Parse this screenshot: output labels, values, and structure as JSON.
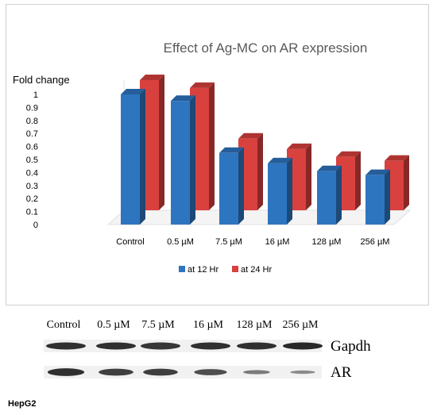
{
  "chart_data": {
    "type": "bar",
    "style": "3d-clustered",
    "title": "Effect of Ag-MC on AR expression",
    "ylabel": "Fold change",
    "xlabel": "",
    "ylim": [
      0,
      1
    ],
    "yticks": [
      "0",
      "0.1",
      "0.2",
      "0.3",
      "0.4",
      "0.5",
      "0.6",
      "0.7",
      "0.8",
      "0.9",
      "1"
    ],
    "categories": [
      "Control",
      "0.5 µM",
      "7.5 µM",
      "16 µM",
      "128 µM",
      "256 µM"
    ],
    "series": [
      {
        "name": "at 12 Hr",
        "values": [
          1.0,
          0.95,
          0.55,
          0.47,
          0.41,
          0.38
        ],
        "color": "#2e75c0"
      },
      {
        "name": "at 24 Hr",
        "values": [
          1.0,
          0.94,
          0.55,
          0.47,
          0.41,
          0.38
        ],
        "color": "#d9413f"
      }
    ],
    "legend_position": "bottom",
    "grid": false
  },
  "blot": {
    "lanes": [
      "Control",
      "0.5 µM",
      "7.5 µM",
      "16 µM",
      "128 µM",
      "256 µM"
    ],
    "rows": [
      {
        "name": "Gapdh",
        "intensities": [
          0.85,
          0.85,
          0.8,
          0.85,
          0.85,
          0.9
        ]
      },
      {
        "name": "AR",
        "intensities": [
          0.85,
          0.75,
          0.75,
          0.65,
          0.35,
          0.25
        ]
      }
    ]
  },
  "cell_line": "HepG2"
}
